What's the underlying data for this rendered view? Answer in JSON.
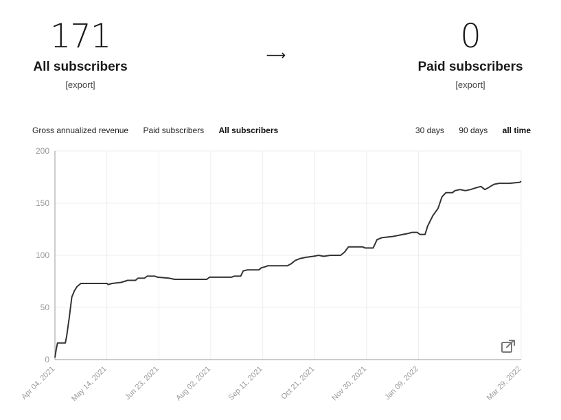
{
  "stats": {
    "left": {
      "value": "171",
      "label": "All subscribers",
      "export": "[export]"
    },
    "arrow": "⟶",
    "right": {
      "value": "0",
      "label": "Paid subscribers",
      "export": "[export]"
    }
  },
  "tabs": {
    "gross_revenue": "Gross annualized revenue",
    "paid": "Paid subscribers",
    "all": "All subscribers"
  },
  "ranges": {
    "d30": "30 days",
    "d90": "90 days",
    "all_time": "all time"
  },
  "icons": {
    "open_external": "external-link-icon"
  },
  "chart_data": {
    "type": "line",
    "ylim": [
      0,
      200
    ],
    "yticks": [
      0,
      50,
      100,
      150,
      200
    ],
    "xlim": [
      "2021-04-04",
      "2022-03-29"
    ],
    "xticks": [
      "Apr 04, 2021",
      "May 14, 2021",
      "Jun 23, 2021",
      "Aug 02, 2021",
      "Sep 11, 2021",
      "Oct 21, 2021",
      "Nov 30, 2021",
      "Jan 09, 2022",
      "Mar 29, 2022"
    ],
    "grid": true,
    "series": [
      {
        "color": "#333333",
        "points": [
          [
            "2021-04-04",
            2
          ],
          [
            "2021-04-05",
            10
          ],
          [
            "2021-04-06",
            16
          ],
          [
            "2021-04-12",
            16
          ],
          [
            "2021-04-13",
            22
          ],
          [
            "2021-04-15",
            40
          ],
          [
            "2021-04-17",
            60
          ],
          [
            "2021-04-19",
            66
          ],
          [
            "2021-04-21",
            70
          ],
          [
            "2021-04-24",
            73
          ],
          [
            "2021-05-14",
            73
          ],
          [
            "2021-05-15",
            72
          ],
          [
            "2021-05-18",
            73
          ],
          [
            "2021-05-25",
            74
          ],
          [
            "2021-05-30",
            76
          ],
          [
            "2021-06-05",
            76
          ],
          [
            "2021-06-07",
            78
          ],
          [
            "2021-06-12",
            78
          ],
          [
            "2021-06-14",
            80
          ],
          [
            "2021-06-20",
            80
          ],
          [
            "2021-06-22",
            79
          ],
          [
            "2021-07-01",
            78
          ],
          [
            "2021-07-05",
            77
          ],
          [
            "2021-07-30",
            77
          ],
          [
            "2021-08-01",
            79
          ],
          [
            "2021-08-18",
            79
          ],
          [
            "2021-08-20",
            80
          ],
          [
            "2021-08-25",
            80
          ],
          [
            "2021-08-27",
            85
          ],
          [
            "2021-08-30",
            86
          ],
          [
            "2021-09-08",
            86
          ],
          [
            "2021-09-10",
            88
          ],
          [
            "2021-09-13",
            89
          ],
          [
            "2021-09-15",
            90
          ],
          [
            "2021-09-30",
            90
          ],
          [
            "2021-10-03",
            92
          ],
          [
            "2021-10-06",
            95
          ],
          [
            "2021-10-10",
            97
          ],
          [
            "2021-10-14",
            98
          ],
          [
            "2021-10-20",
            99
          ],
          [
            "2021-10-24",
            100
          ],
          [
            "2021-10-28",
            99
          ],
          [
            "2021-11-02",
            100
          ],
          [
            "2021-11-10",
            100
          ],
          [
            "2021-11-13",
            103
          ],
          [
            "2021-11-16",
            108
          ],
          [
            "2021-11-27",
            108
          ],
          [
            "2021-11-29",
            107
          ],
          [
            "2021-12-05",
            107
          ],
          [
            "2021-12-08",
            115
          ],
          [
            "2021-12-12",
            117
          ],
          [
            "2021-12-20",
            118
          ],
          [
            "2021-12-24",
            119
          ],
          [
            "2021-12-28",
            120
          ],
          [
            "2022-01-01",
            121
          ],
          [
            "2022-01-04",
            122
          ],
          [
            "2022-01-08",
            122
          ],
          [
            "2022-01-10",
            120
          ],
          [
            "2022-01-14",
            120
          ],
          [
            "2022-01-16",
            128
          ],
          [
            "2022-01-20",
            138
          ],
          [
            "2022-01-24",
            145
          ],
          [
            "2022-01-27",
            156
          ],
          [
            "2022-01-30",
            160
          ],
          [
            "2022-02-04",
            160
          ],
          [
            "2022-02-06",
            162
          ],
          [
            "2022-02-10",
            163
          ],
          [
            "2022-02-14",
            162
          ],
          [
            "2022-02-18",
            163
          ],
          [
            "2022-02-23",
            165
          ],
          [
            "2022-02-26",
            166
          ],
          [
            "2022-03-01",
            163
          ],
          [
            "2022-03-04",
            165
          ],
          [
            "2022-03-08",
            168
          ],
          [
            "2022-03-12",
            169
          ],
          [
            "2022-03-20",
            169
          ],
          [
            "2022-03-28",
            170
          ],
          [
            "2022-03-29",
            171
          ]
        ]
      }
    ]
  }
}
